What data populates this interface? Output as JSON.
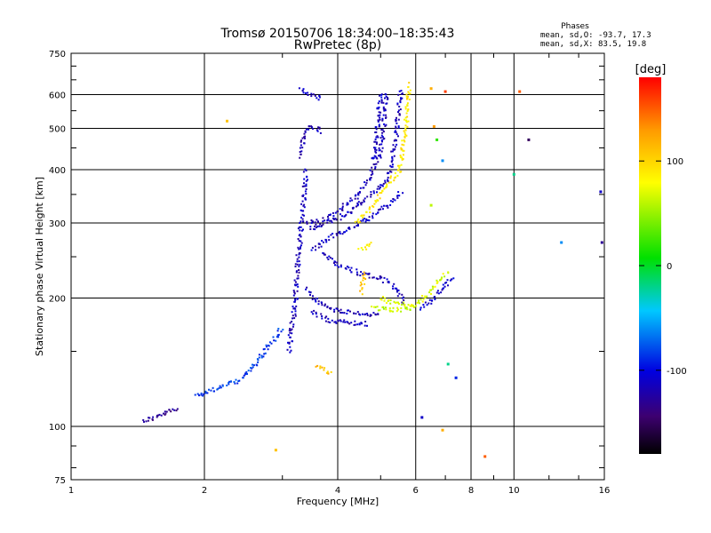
{
  "chart_data": {
    "type": "scatter",
    "title": "Tromsø 20150706 18:34:00–18:35:43",
    "subtitle": "RwPretec (8p)",
    "xlabel": "Frequency [MHz]",
    "ylabel": "Stationary phase Virtual Height [km]",
    "x_scale": "log",
    "y_scale": "log",
    "xlim": [
      1,
      16
    ],
    "ylim": [
      75,
      750
    ],
    "x_ticks": [
      1,
      2,
      4,
      6,
      8,
      10,
      16
    ],
    "y_ticks": [
      75,
      100,
      200,
      300,
      400,
      500,
      600,
      750
    ],
    "grid": true,
    "info": {
      "heading": "Phases",
      "line_o": "mean, sd,O: -93.7, 17.3",
      "line_x": "mean, sd,X:  83.5, 19.8"
    },
    "colorbar": {
      "label": "[deg]",
      "range": [
        -180,
        180
      ],
      "ticks": [
        100,
        0,
        -100
      ],
      "palette": "rainbow (black-purple-blue-cyan-green-yellow-red)"
    },
    "series": [
      {
        "phase_deg": -130,
        "polyline": [
          [
            1.45,
            103
          ],
          [
            1.55,
            105
          ],
          [
            1.65,
            108
          ],
          [
            1.75,
            110
          ]
        ]
      },
      {
        "phase_deg": -85,
        "polyline": [
          [
            1.9,
            118
          ],
          [
            2.1,
            122
          ],
          [
            2.4,
            128
          ],
          [
            2.6,
            140
          ],
          [
            2.8,
            155
          ],
          [
            3.0,
            170
          ]
        ]
      },
      {
        "phase_deg": -115,
        "polyline": [
          [
            3.1,
            150
          ],
          [
            3.2,
            190
          ],
          [
            3.25,
            240
          ],
          [
            3.3,
            290
          ],
          [
            3.35,
            340
          ],
          [
            3.4,
            400
          ]
        ]
      },
      {
        "phase_deg": -115,
        "polyline": [
          [
            3.3,
            430
          ],
          [
            3.35,
            480
          ],
          [
            3.4,
            500
          ],
          [
            3.6,
            500
          ],
          [
            3.7,
            490
          ]
        ]
      },
      {
        "phase_deg": -115,
        "polyline": [
          [
            3.3,
            620
          ],
          [
            3.45,
            600
          ],
          [
            3.6,
            590
          ],
          [
            3.7,
            600
          ]
        ]
      },
      {
        "phase_deg": -115,
        "polyline": [
          [
            3.4,
            300
          ],
          [
            3.7,
            305
          ],
          [
            4.0,
            320
          ],
          [
            4.4,
            345
          ],
          [
            4.7,
            380
          ],
          [
            5.0,
            440
          ],
          [
            5.1,
            520
          ],
          [
            5.15,
            610
          ]
        ]
      },
      {
        "phase_deg": -115,
        "polyline": [
          [
            3.45,
            290
          ],
          [
            3.8,
            300
          ],
          [
            4.2,
            315
          ],
          [
            4.6,
            340
          ],
          [
            5.2,
            380
          ],
          [
            5.4,
            460
          ],
          [
            5.5,
            560
          ],
          [
            5.55,
            620
          ]
        ]
      },
      {
        "phase_deg": -110,
        "polyline": [
          [
            3.5,
            260
          ],
          [
            3.8,
            275
          ],
          [
            4.2,
            290
          ],
          [
            4.8,
            310
          ],
          [
            5.6,
            355
          ]
        ]
      },
      {
        "phase_deg": -115,
        "polyline": [
          [
            3.4,
            210
          ],
          [
            3.6,
            195
          ],
          [
            3.9,
            188
          ],
          [
            4.3,
            185
          ],
          [
            4.7,
            183
          ],
          [
            5.0,
            182
          ]
        ]
      },
      {
        "phase_deg": -115,
        "polyline": [
          [
            3.5,
            185
          ],
          [
            3.8,
            178
          ],
          [
            4.2,
            175
          ],
          [
            4.7,
            174
          ]
        ]
      },
      {
        "phase_deg": -115,
        "polyline": [
          [
            3.7,
            255
          ],
          [
            4.0,
            240
          ],
          [
            4.4,
            230
          ],
          [
            4.8,
            225
          ],
          [
            5.1,
            220
          ],
          [
            5.3,
            215
          ],
          [
            5.5,
            205
          ],
          [
            5.7,
            195
          ]
        ]
      },
      {
        "phase_deg": -110,
        "polyline": [
          [
            6.2,
            190
          ],
          [
            6.6,
            200
          ],
          [
            7.0,
            215
          ],
          [
            7.3,
            225
          ]
        ]
      },
      {
        "phase_deg": -110,
        "polyline": [
          [
            4.8,
            420
          ],
          [
            4.9,
            480
          ],
          [
            4.95,
            550
          ],
          [
            5.0,
            610
          ]
        ]
      },
      {
        "phase_deg": 90,
        "polyline": [
          [
            4.4,
            300
          ],
          [
            4.8,
            330
          ],
          [
            5.2,
            370
          ],
          [
            5.5,
            400
          ],
          [
            5.6,
            450
          ],
          [
            5.7,
            500
          ],
          [
            5.75,
            560
          ],
          [
            5.8,
            640
          ]
        ]
      },
      {
        "phase_deg": 70,
        "polyline": [
          [
            5.0,
            200
          ],
          [
            5.3,
            195
          ],
          [
            5.8,
            192
          ],
          [
            6.1,
            195
          ],
          [
            6.4,
            205
          ],
          [
            6.8,
            220
          ],
          [
            7.1,
            230
          ]
        ]
      },
      {
        "phase_deg": 60,
        "polyline": [
          [
            4.8,
            190
          ],
          [
            5.2,
            188
          ],
          [
            5.6,
            188
          ],
          [
            6.0,
            190
          ]
        ]
      },
      {
        "phase_deg": 110,
        "polyline": [
          [
            3.6,
            138
          ],
          [
            3.75,
            135
          ],
          [
            3.9,
            133
          ]
        ]
      },
      {
        "phase_deg": 110,
        "polyline": [
          [
            4.6,
            230
          ],
          [
            4.55,
            215
          ],
          [
            4.5,
            205
          ]
        ]
      },
      {
        "phase_deg": 80,
        "polyline": [
          [
            4.5,
            260
          ],
          [
            4.7,
            265
          ],
          [
            4.8,
            270
          ]
        ]
      }
    ],
    "scatter_points": [
      {
        "x": 2.25,
        "y": 520,
        "phase_deg": 110
      },
      {
        "x": 2.9,
        "y": 88,
        "phase_deg": 110
      },
      {
        "x": 7.0,
        "y": 610,
        "phase_deg": 160
      },
      {
        "x": 10.3,
        "y": 610,
        "phase_deg": 150
      },
      {
        "x": 10.0,
        "y": 390,
        "phase_deg": -20
      },
      {
        "x": 10.8,
        "y": 470,
        "phase_deg": -150
      },
      {
        "x": 12.8,
        "y": 270,
        "phase_deg": -60
      },
      {
        "x": 15.8,
        "y": 270,
        "phase_deg": -130
      },
      {
        "x": 15.7,
        "y": 355,
        "phase_deg": -110
      },
      {
        "x": 8.6,
        "y": 85,
        "phase_deg": 150
      },
      {
        "x": 6.5,
        "y": 330,
        "phase_deg": 60
      },
      {
        "x": 6.9,
        "y": 420,
        "phase_deg": -60
      },
      {
        "x": 6.5,
        "y": 620,
        "phase_deg": 120
      },
      {
        "x": 7.4,
        "y": 130,
        "phase_deg": -90
      },
      {
        "x": 6.2,
        "y": 105,
        "phase_deg": -110
      },
      {
        "x": 6.9,
        "y": 98,
        "phase_deg": 120
      },
      {
        "x": 7.1,
        "y": 140,
        "phase_deg": -20
      },
      {
        "x": 6.6,
        "y": 505,
        "phase_deg": 130
      },
      {
        "x": 6.7,
        "y": 470,
        "phase_deg": 20
      }
    ]
  }
}
